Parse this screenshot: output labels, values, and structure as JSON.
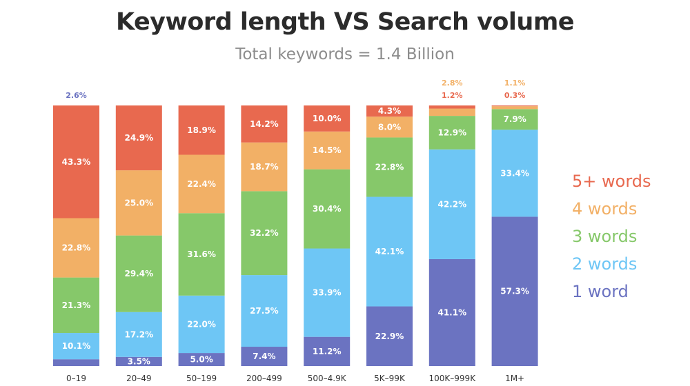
{
  "chart_data": {
    "type": "bar",
    "stacked": true,
    "title": "Keyword length VS Search volume",
    "subtitle": "Total keywords = 1.4 Billion",
    "categories": [
      "0–19",
      "20–49",
      "50–199",
      "200–499",
      "500–4.9K",
      "5K–99K",
      "100K–999K",
      "1M+"
    ],
    "series": [
      {
        "name": "1 word",
        "color": "#6b73c1",
        "values": [
          2.6,
          3.5,
          5.0,
          7.4,
          11.2,
          22.9,
          41.1,
          57.3
        ]
      },
      {
        "name": "2 words",
        "color": "#6ec6f5",
        "values": [
          10.1,
          17.2,
          22.0,
          27.5,
          33.9,
          42.1,
          42.2,
          33.4
        ]
      },
      {
        "name": "3 words",
        "color": "#86c86a",
        "values": [
          21.3,
          29.4,
          31.6,
          32.2,
          30.4,
          22.8,
          12.9,
          7.9
        ]
      },
      {
        "name": "4 words",
        "color": "#f2b066",
        "values": [
          22.8,
          25.0,
          22.4,
          18.7,
          14.5,
          8.0,
          2.8,
          1.1
        ]
      },
      {
        "name": "5+ words",
        "color": "#e8694f",
        "values": [
          43.3,
          24.9,
          18.9,
          14.2,
          10.0,
          4.3,
          1.2,
          0.3
        ]
      }
    ],
    "value_labels": {
      "1 word": [
        "2.6%",
        "3.5%",
        "5.0%",
        "7.4%",
        "11.2%",
        "22.9%",
        "41.1%",
        "57.3%"
      ],
      "2 words": [
        "10.1%",
        "17.2%",
        "22.0%",
        "27.5%",
        "33.9%",
        "42.1%",
        "42.2%",
        "33.4%"
      ],
      "3 words": [
        "21.3%",
        "29.4%",
        "31.6%",
        "32.2%",
        "30.4%",
        "22.8%",
        "12.9%",
        "7.9%"
      ],
      "4 words": [
        "22.8%",
        "25.0%",
        "22.4%",
        "18.7%",
        "14.5%",
        "8.0%",
        "2.8%",
        "1.1%"
      ],
      "5+ words": [
        "43.3%",
        "24.9%",
        "18.9%",
        "14.2%",
        "10.0%",
        "4.3%",
        "1.2%",
        "0.3%"
      ]
    },
    "legend_order": [
      "5+ words",
      "4 words",
      "3 words",
      "2 words",
      "1 word"
    ],
    "legend_position": "right",
    "ylim": [
      0,
      100
    ],
    "grid": false
  }
}
